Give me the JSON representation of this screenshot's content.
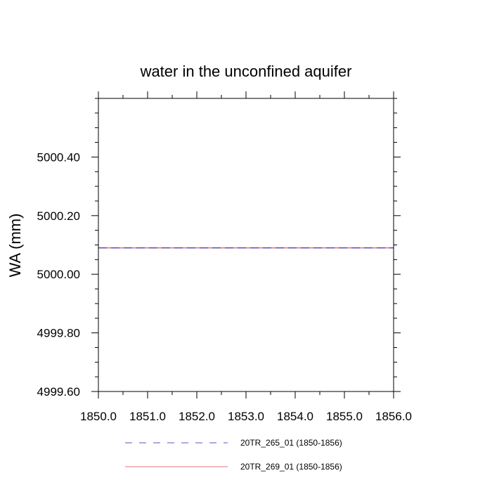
{
  "chart_data": {
    "type": "line",
    "title": "water in the unconfined aquifer",
    "xlabel": "",
    "ylabel": "WA  (mm)",
    "xlim": [
      1850.0,
      1856.0
    ],
    "ylim": [
      4999.6,
      5000.6
    ],
    "x_ticks": [
      1850.0,
      1851.0,
      1852.0,
      1853.0,
      1854.0,
      1855.0,
      1856.0
    ],
    "x_tick_labels": [
      "1850.0",
      "1851.0",
      "1852.0",
      "1853.0",
      "1854.0",
      "1855.0",
      "1856.0"
    ],
    "y_ticks": [
      4999.6,
      4999.8,
      5000.0,
      5000.2,
      5000.4
    ],
    "y_tick_labels": [
      "4999.60",
      "4999.80",
      "5000.00",
      "5000.20",
      "5000.40"
    ],
    "grid": false,
    "legend_position": "bottom",
    "series": [
      {
        "name": "20TR_265_01 (1850-1856)",
        "color": "#5555cc",
        "style": "dashed",
        "x": [
          1850.0,
          1851.0,
          1852.0,
          1853.0,
          1854.0,
          1855.0,
          1856.0
        ],
        "y": [
          5000.09,
          5000.09,
          5000.09,
          5000.09,
          5000.09,
          5000.09,
          5000.09
        ]
      },
      {
        "name": "20TR_269_01 (1850-1856)",
        "color": "#e87070",
        "style": "solid",
        "x": [
          1850.0,
          1851.0,
          1852.0,
          1853.0,
          1854.0,
          1855.0,
          1856.0
        ],
        "y": [
          5000.09,
          5000.09,
          5000.09,
          5000.09,
          5000.09,
          5000.09,
          5000.09
        ]
      }
    ]
  }
}
